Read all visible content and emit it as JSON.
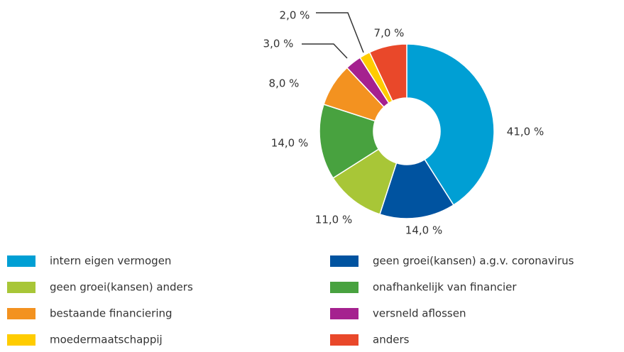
{
  "chart_data": {
    "type": "donut",
    "series": [
      {
        "name": "intern eigen vermogen",
        "color": "#009fd4",
        "values": [
          41
        ],
        "value_labels": [
          "41,0 %"
        ]
      },
      {
        "name": "geen groei(kansen) a.g.v. coronavirus",
        "color": "#0053a0",
        "values": [
          14
        ],
        "value_labels": [
          "14,0 %"
        ]
      },
      {
        "name": "geen groei(kansen) anders",
        "color": "#a8c637",
        "values": [
          11
        ],
        "value_labels": [
          "11,0 %"
        ]
      },
      {
        "name": "onafhankelijk van financier",
        "color": "#48a23f",
        "values": [
          14
        ],
        "value_labels": [
          "14,0 %"
        ]
      },
      {
        "name": "bestaande financiering",
        "color": "#f39220",
        "values": [
          8
        ],
        "value_labels": [
          "8,0 %"
        ]
      },
      {
        "name": "versneld aflossen",
        "color": "#a5218f",
        "values": [
          3
        ],
        "value_labels": [
          "3,0 %"
        ]
      },
      {
        "name": "moedermaatschappij",
        "color": "#ffcc00",
        "values": [
          2
        ],
        "value_labels": [
          "2,0 %"
        ]
      },
      {
        "name": "anders",
        "color": "#e9482a",
        "values": [
          7
        ],
        "value_labels": [
          "7,0 %"
        ]
      }
    ]
  }
}
